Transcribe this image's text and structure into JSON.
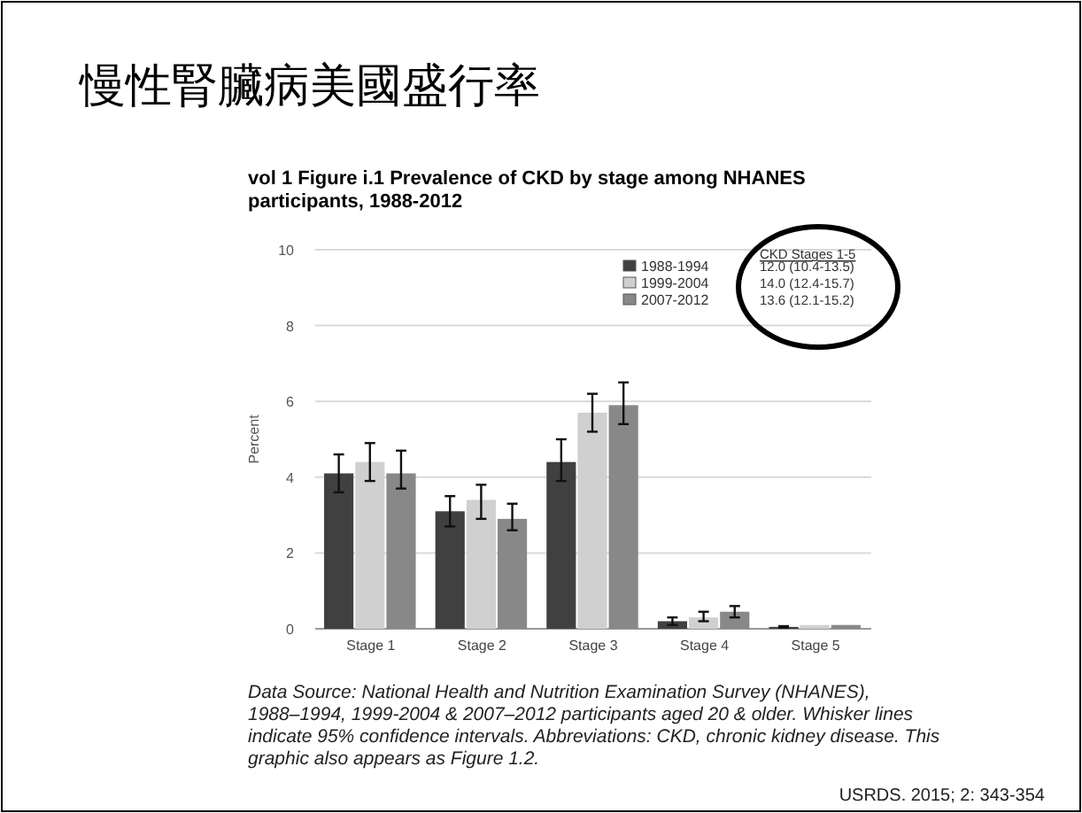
{
  "chart_data": {
    "type": "bar",
    "title": "慢性腎臟病美國盛行率",
    "subtitle": "vol 1 Figure i.1  Prevalence of CKD by stage among NHANES participants, 1988-2012",
    "ylabel": "Percent",
    "categories": [
      "Stage 1",
      "Stage 2",
      "Stage 3",
      "Stage 4",
      "Stage 5"
    ],
    "series": [
      {
        "name": "1988-1994",
        "color": "#404040",
        "values": [
          4.1,
          3.1,
          4.4,
          0.2,
          0.05
        ],
        "errors": [
          [
            3.6,
            4.6
          ],
          [
            2.7,
            3.5
          ],
          [
            3.9,
            5.0
          ],
          [
            0.1,
            0.3
          ],
          [
            0.03,
            0.07
          ]
        ]
      },
      {
        "name": "1999-2004",
        "color": "#d0d0d0",
        "values": [
          4.4,
          3.4,
          5.7,
          0.3,
          0.1
        ],
        "errors": [
          [
            3.9,
            4.9
          ],
          [
            2.9,
            3.8
          ],
          [
            5.2,
            6.2
          ],
          [
            0.2,
            0.45
          ],
          null
        ]
      },
      {
        "name": "2007-2012",
        "color": "#888888",
        "values": [
          4.1,
          2.9,
          5.9,
          0.45,
          0.1
        ],
        "errors": [
          [
            3.7,
            4.7
          ],
          [
            2.6,
            3.3
          ],
          [
            5.4,
            6.5
          ],
          [
            0.3,
            0.6
          ],
          null
        ]
      }
    ],
    "ylim": [
      0,
      10
    ],
    "yticks": [
      0,
      2,
      4,
      6,
      8,
      10
    ],
    "grid": "y",
    "legend": "top right",
    "annotations": [
      "CKD Stages 1-5",
      "12.0 (10.4-13.5)",
      "14.0 (12.4-15.7)",
      "13.6 (12.1-15.2)",
      "Data Source: National Health and Nutrition Examination Survey (NHANES), 1988–1994, 1999-2004 & 2007–2012 participants aged 20 & older. Whisker lines indicate 95% confidence intervals. Abbreviations: CKD, chronic kidney disease. This graphic also appears as Figure 1.2.",
      "USRDS. 2015; 2: 343-354"
    ]
  }
}
